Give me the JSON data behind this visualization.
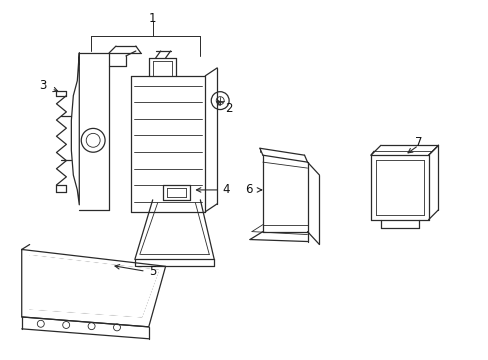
{
  "background_color": "#ffffff",
  "fig_width": 4.89,
  "fig_height": 3.6,
  "dpi": 100,
  "line_color": "#2a2a2a",
  "label_color": "#111111",
  "label_fontsize": 8.5
}
